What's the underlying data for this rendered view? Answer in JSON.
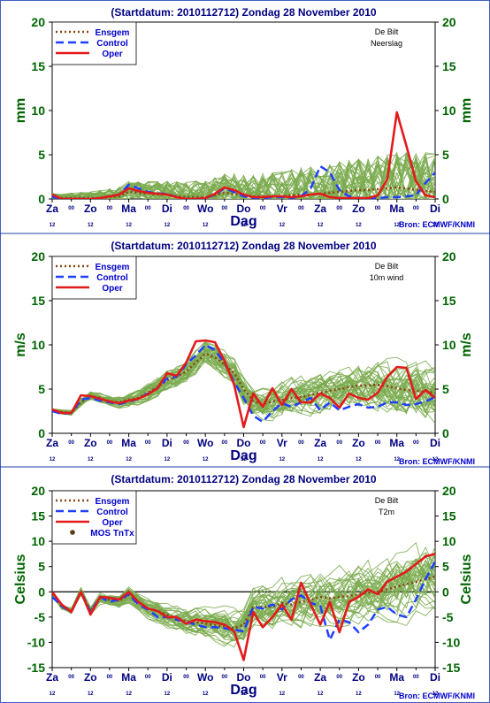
{
  "chart_data": [
    {
      "type": "line",
      "title": "(Startdatum: 2010112712)   Zondag    28 November  2010",
      "location": "De Bilt",
      "variable": "Neerslag",
      "ylabel": "mm",
      "xlabel": "Dag",
      "ylim": [
        0,
        20
      ],
      "yticks": [
        0,
        5,
        10,
        15,
        20
      ],
      "day_labels": [
        "Za",
        "Zo",
        "Ma",
        "Di",
        "Wo",
        "Do",
        "Vr",
        "Za",
        "Zo",
        "Ma",
        "Di"
      ],
      "hour_label": "12",
      "marker_label": "00",
      "legend": [
        "Ensgem",
        "Control",
        "Oper"
      ],
      "credit": "Bron: ECMWF/KNMI",
      "x": [
        0,
        0.25,
        0.5,
        0.75,
        1,
        1.25,
        1.5,
        1.75,
        2,
        2.25,
        2.5,
        2.75,
        3,
        3.25,
        3.5,
        3.75,
        4,
        4.25,
        4.5,
        4.75,
        5,
        5.25,
        5.5,
        5.75,
        6,
        6.25,
        6.5,
        6.75,
        7,
        7.25,
        7.5,
        7.75,
        8,
        8.25,
        8.5,
        8.75,
        9,
        9.25,
        9.5,
        9.75,
        10
      ],
      "series": [
        {
          "name": "Ensgem",
          "color": "#8b4513",
          "values": [
            0.3,
            0.1,
            0.1,
            0.1,
            0.1,
            0.1,
            0.2,
            0.3,
            0.8,
            0.7,
            0.6,
            0.5,
            0.5,
            0.3,
            0.2,
            0.2,
            0.2,
            0.4,
            0.7,
            0.6,
            0.4,
            0.3,
            0.3,
            0.3,
            0.3,
            0.4,
            0.5,
            0.5,
            0.6,
            0.7,
            0.8,
            0.9,
            1.0,
            1.0,
            1.1,
            1.2,
            1.3,
            1.2,
            1.0,
            0.9,
            0.8
          ]
        },
        {
          "name": "Control",
          "color": "#1f3fff",
          "values": [
            0.2,
            0.0,
            0.0,
            0.0,
            0.0,
            0.1,
            0.3,
            0.5,
            1.6,
            1.2,
            0.8,
            0.6,
            0.6,
            0.2,
            0.0,
            0.0,
            0.1,
            0.5,
            1.2,
            0.8,
            0.3,
            0.1,
            0.1,
            0.2,
            0.2,
            0.1,
            0.3,
            1.2,
            3.7,
            3.0,
            1.0,
            0.3,
            0.1,
            0.1,
            0.1,
            0.2,
            0.2,
            0.3,
            0.4,
            1.8,
            3.0
          ]
        },
        {
          "name": "Oper",
          "color": "#e31a1c",
          "values": [
            0.5,
            0.0,
            0.0,
            0.0,
            0.0,
            0.1,
            0.3,
            0.5,
            1.2,
            0.9,
            0.7,
            0.6,
            0.5,
            0.2,
            0.0,
            0.0,
            0.1,
            0.6,
            1.3,
            1.0,
            0.5,
            0.2,
            0.2,
            0.3,
            0.3,
            0.2,
            0.3,
            0.5,
            0.6,
            0.2,
            0.1,
            0.1,
            0.1,
            0.1,
            0.4,
            2.2,
            9.8,
            6.0,
            2.0,
            0.4,
            0.2
          ]
        }
      ]
    },
    {
      "type": "line",
      "title": "(Startdatum: 2010112712)   Zondag    28 November  2010",
      "location": "De Bilt",
      "variable": "10m wind",
      "ylabel": "m/s",
      "xlabel": "Dag",
      "ylim": [
        0,
        20
      ],
      "yticks": [
        0,
        5,
        10,
        15,
        20
      ],
      "day_labels": [
        "Za",
        "Zo",
        "Ma",
        "Di",
        "Wo",
        "Do",
        "Vr",
        "Za",
        "Zo",
        "Ma",
        "Di"
      ],
      "hour_label": "12",
      "marker_label": "00",
      "legend": [
        "Ensgem",
        "Control",
        "Oper"
      ],
      "credit": "Bron: ECMWF/KNMI",
      "x": [
        0,
        0.25,
        0.5,
        0.75,
        1,
        1.25,
        1.5,
        1.75,
        2,
        2.25,
        2.5,
        2.75,
        3,
        3.25,
        3.5,
        3.75,
        4,
        4.25,
        4.5,
        4.75,
        5,
        5.25,
        5.5,
        5.75,
        6,
        6.25,
        6.5,
        6.75,
        7,
        7.25,
        7.5,
        7.75,
        8,
        8.25,
        8.5,
        8.75,
        9,
        9.25,
        9.5,
        9.75,
        10
      ],
      "series": [
        {
          "name": "Ensgem",
          "color": "#8b4513",
          "values": [
            2.6,
            2.4,
            2.3,
            3.5,
            4.2,
            4.0,
            3.6,
            3.5,
            3.8,
            4.0,
            4.6,
            5.2,
            6.0,
            6.4,
            7.0,
            8.0,
            9.0,
            8.6,
            7.8,
            6.8,
            5.0,
            3.6,
            3.3,
            3.6,
            3.8,
            4.0,
            4.1,
            4.3,
            4.6,
            4.8,
            5.0,
            5.2,
            5.4,
            5.4,
            5.5,
            5.3,
            5.1,
            4.9,
            4.8,
            4.7,
            4.6
          ]
        },
        {
          "name": "Control",
          "color": "#1f3fff",
          "values": [
            2.5,
            2.2,
            2.3,
            3.8,
            4.0,
            3.7,
            3.5,
            3.3,
            3.6,
            3.9,
            4.5,
            5.1,
            6.2,
            6.4,
            7.8,
            8.8,
            10.0,
            9.4,
            8.0,
            5.8,
            4.0,
            2.0,
            1.3,
            2.5,
            3.4,
            3.0,
            3.5,
            4.0,
            2.6,
            3.5,
            2.6,
            3.0,
            3.3,
            2.9,
            3.0,
            3.5,
            3.5,
            3.2,
            3.3,
            3.6,
            4.1
          ]
        },
        {
          "name": "Oper",
          "color": "#e31a1c",
          "values": [
            2.7,
            2.3,
            2.3,
            4.3,
            4.2,
            3.9,
            3.6,
            3.4,
            3.7,
            3.9,
            4.4,
            5.1,
            6.8,
            6.5,
            8.0,
            10.4,
            10.5,
            10.3,
            8.2,
            5.5,
            0.7,
            4.5,
            3.0,
            5.1,
            3.2,
            5.0,
            3.5,
            3.5,
            4.5,
            4.0,
            2.9,
            4.5,
            4.0,
            3.8,
            4.6,
            6.4,
            7.5,
            7.4,
            3.9,
            4.9,
            4.0
          ]
        }
      ]
    },
    {
      "type": "line",
      "title": "(Startdatum: 2010112712)   Zondag    28 November  2010",
      "location": "De Bilt",
      "variable": "T2m",
      "ylabel": "Celsius",
      "xlabel": "Dag",
      "ylim": [
        -15,
        20
      ],
      "yticks": [
        -15,
        -10,
        -5,
        0,
        5,
        10,
        15,
        20
      ],
      "day_labels": [
        "Za",
        "Zo",
        "Ma",
        "Di",
        "Wo",
        "Do",
        "Vr",
        "Za",
        "Zo",
        "Ma",
        "Di"
      ],
      "hour_label": "12",
      "marker_label": "00",
      "legend": [
        "Ensgem",
        "Control",
        "Oper",
        "MOS TnTx"
      ],
      "credit": "Bron: ECMWF/KNMI",
      "x": [
        0,
        0.25,
        0.5,
        0.75,
        1,
        1.25,
        1.5,
        1.75,
        2,
        2.25,
        2.5,
        2.75,
        3,
        3.25,
        3.5,
        3.75,
        4,
        4.25,
        4.5,
        4.75,
        5,
        5.25,
        5.5,
        5.75,
        6,
        6.25,
        6.5,
        6.75,
        7,
        7.25,
        7.5,
        7.75,
        8,
        8.25,
        8.5,
        8.75,
        9,
        9.25,
        9.5,
        9.75,
        10
      ],
      "series": [
        {
          "name": "Ensgem",
          "color": "#8b4513",
          "values": [
            -0.5,
            -3.0,
            -3.8,
            0.0,
            -3.8,
            -1.3,
            -1.6,
            -1.8,
            -0.6,
            -2.0,
            -3.3,
            -3.8,
            -4.5,
            -5.2,
            -5.8,
            -6.0,
            -6.3,
            -6.6,
            -6.9,
            -7.2,
            -6.5,
            -3.0,
            -3.0,
            -3.0,
            -2.2,
            -2.5,
            -2.0,
            -1.6,
            -1.0,
            -1.3,
            -1.0,
            -0.8,
            -0.5,
            -0.2,
            0.0,
            0.5,
            1.0,
            1.5,
            2.0,
            2.5,
            3.0
          ]
        },
        {
          "name": "Control",
          "color": "#1f3fff",
          "values": [
            -1.0,
            -2.8,
            -4.0,
            0.0,
            -4.0,
            -1.0,
            -2.0,
            -1.5,
            -0.5,
            -2.5,
            -3.5,
            -5.0,
            -5.0,
            -5.5,
            -6.0,
            -6.5,
            -7.0,
            -7.0,
            -7.2,
            -7.5,
            -7.8,
            -3.0,
            -3.3,
            -2.5,
            -3.5,
            -1.5,
            -0.7,
            -2.2,
            -2.8,
            -9.5,
            -5.5,
            -6.0,
            -8.0,
            -6.5,
            -3.5,
            -3.0,
            -4.5,
            -5.0,
            -1.5,
            2.5,
            6.0
          ]
        },
        {
          "name": "Oper",
          "color": "#e31a1c",
          "values": [
            0.0,
            -2.5,
            -4.0,
            0.0,
            -4.5,
            -1.0,
            -1.2,
            -1.5,
            0.0,
            -2.0,
            -3.3,
            -3.8,
            -5.0,
            -5.0,
            -6.3,
            -5.5,
            -5.8,
            -6.0,
            -6.5,
            -7.8,
            -13.5,
            -4.0,
            -7.0,
            -5.0,
            -2.5,
            -5.5,
            1.8,
            -2.5,
            -6.5,
            -2.0,
            -8.0,
            -2.0,
            -1.0,
            0.5,
            -0.5,
            2.0,
            3.0,
            4.0,
            5.5,
            7.0,
            7.5
          ]
        }
      ]
    }
  ]
}
